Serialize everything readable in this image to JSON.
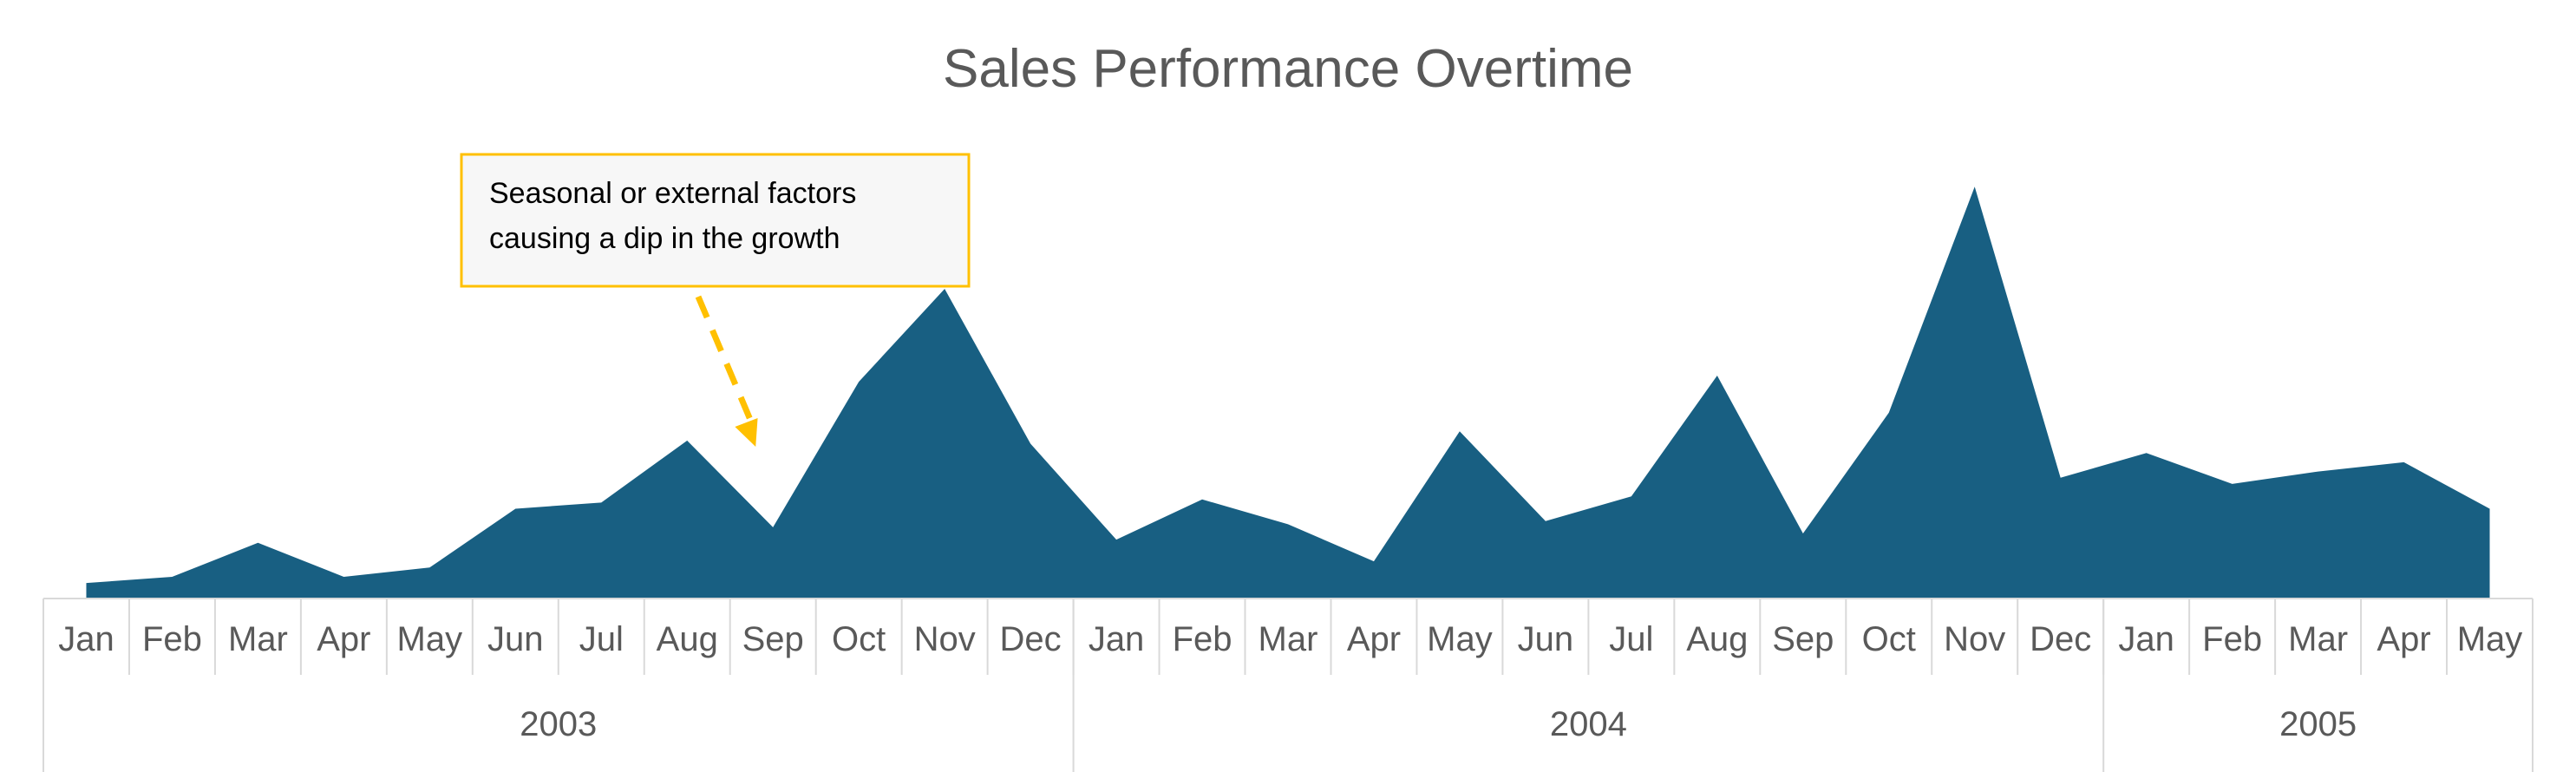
{
  "chart_data": {
    "type": "area",
    "title": "Sales Performance Overtime",
    "xlabel": "",
    "ylabel": "",
    "ylim": [
      0,
      100
    ],
    "grid": false,
    "legend": "none",
    "color": "#185F82",
    "months": [
      "Jan",
      "Feb",
      "Mar",
      "Apr",
      "May",
      "Jun",
      "Jul",
      "Aug",
      "Sep",
      "Oct",
      "Nov",
      "Dec",
      "Jan",
      "Feb",
      "Mar",
      "Apr",
      "May",
      "Jun",
      "Jul",
      "Aug",
      "Sep",
      "Oct",
      "Nov",
      "Dec",
      "Jan",
      "Feb",
      "Mar",
      "Apr",
      "May"
    ],
    "years": [
      {
        "label": "2003",
        "count": 12
      },
      {
        "label": "2004",
        "count": 12
      },
      {
        "label": "2005",
        "count": 5
      }
    ],
    "values": [
      5,
      7,
      18,
      7,
      10,
      29,
      31,
      51,
      23,
      70,
      100,
      50,
      19,
      32,
      24,
      12,
      54,
      25,
      33,
      72,
      21,
      60,
      133,
      39,
      47,
      37,
      41,
      44,
      29
    ],
    "annotation": {
      "lines": [
        "Seasonal or external factors",
        "causing a dip in the growth"
      ],
      "target_index": 8,
      "border_color": "#FFC000",
      "arrow_color": "#FFC000"
    }
  }
}
